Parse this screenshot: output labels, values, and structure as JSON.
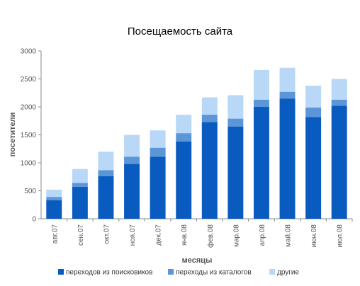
{
  "chart_data": {
    "type": "bar",
    "stacked": true,
    "title": "Посещаемость сайта",
    "xlabel": "месяцы",
    "ylabel": "посетители",
    "ylim": [
      0,
      3000
    ],
    "yticks": [
      0,
      500,
      1000,
      1500,
      2000,
      2500,
      3000
    ],
    "grid": false,
    "legend_position": "bottom",
    "categories": [
      "авг.07",
      "сен.07",
      "окт.07",
      "ноя.07",
      "дек.07",
      "янв.08",
      "фев.08",
      "мар.08",
      "апр.08",
      "май.08",
      "июн.08",
      "июл.08"
    ],
    "series": [
      {
        "name": "переходов из поисковиков",
        "color": "#0a5bbf",
        "values": [
          330,
          570,
          760,
          980,
          1110,
          1380,
          1730,
          1650,
          2000,
          2150,
          1820,
          2020
        ]
      },
      {
        "name": "переходы из каталогов",
        "color": "#5b96d9",
        "values": [
          60,
          70,
          110,
          130,
          160,
          150,
          130,
          140,
          130,
          120,
          170,
          110
        ]
      },
      {
        "name": "другие",
        "color": "#b9d7f7",
        "values": [
          130,
          250,
          330,
          390,
          310,
          330,
          310,
          420,
          530,
          430,
          390,
          370
        ]
      }
    ]
  }
}
